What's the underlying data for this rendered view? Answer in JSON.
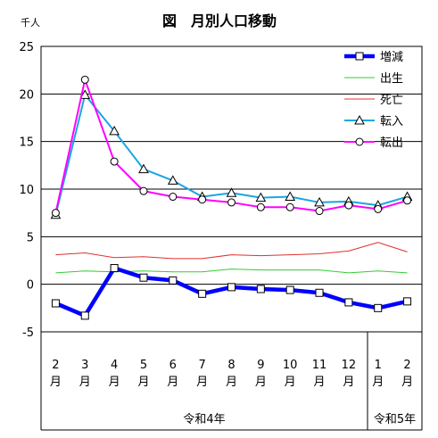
{
  "chart_data": {
    "type": "line",
    "title": "図　月別人口移動",
    "ylabel": "千人",
    "ylim": [
      -5,
      25
    ],
    "yticks": [
      -5,
      0,
      5,
      10,
      15,
      20,
      25
    ],
    "grid": true,
    "legend_position": "top-right",
    "categories": [
      {
        "month": "2",
        "unit": "月"
      },
      {
        "month": "3",
        "unit": "月"
      },
      {
        "month": "4",
        "unit": "月"
      },
      {
        "month": "5",
        "unit": "月"
      },
      {
        "month": "6",
        "unit": "月"
      },
      {
        "month": "7",
        "unit": "月"
      },
      {
        "month": "8",
        "unit": "月"
      },
      {
        "month": "9",
        "unit": "月"
      },
      {
        "month": "10",
        "unit": "月"
      },
      {
        "month": "11",
        "unit": "月"
      },
      {
        "month": "12",
        "unit": "月"
      },
      {
        "month": "1",
        "unit": "月"
      },
      {
        "month": "2",
        "unit": "月"
      }
    ],
    "eras": [
      {
        "label": "令和4年",
        "start": 0,
        "end": 10
      },
      {
        "label": "令和5年",
        "start": 11,
        "end": 12
      }
    ],
    "series": [
      {
        "name": "増減",
        "color": "#0000ff",
        "marker": "square",
        "values": [
          -2.0,
          -3.3,
          1.7,
          0.7,
          0.4,
          -1.0,
          -0.3,
          -0.5,
          -0.6,
          -0.9,
          -1.9,
          -2.5,
          -1.8
        ]
      },
      {
        "name": "出生",
        "color": "#33cc33",
        "marker": "none",
        "values": [
          1.2,
          1.4,
          1.3,
          1.4,
          1.3,
          1.3,
          1.6,
          1.5,
          1.5,
          1.5,
          1.2,
          1.4,
          1.2
        ]
      },
      {
        "name": "死亡",
        "color": "#e03030",
        "marker": "none",
        "values": [
          3.1,
          3.3,
          2.8,
          2.9,
          2.7,
          2.7,
          3.1,
          3.0,
          3.1,
          3.2,
          3.5,
          4.4,
          3.4
        ]
      },
      {
        "name": "転入",
        "color": "#1aa6e0",
        "marker": "triangle",
        "values": [
          7.3,
          19.9,
          16.1,
          12.1,
          10.9,
          9.2,
          9.6,
          9.1,
          9.2,
          8.6,
          8.7,
          8.3,
          9.2
        ]
      },
      {
        "name": "転出",
        "color": "#ff00ff",
        "marker": "circle",
        "values": [
          7.5,
          21.5,
          12.9,
          9.8,
          9.2,
          8.9,
          8.6,
          8.1,
          8.1,
          7.7,
          8.3,
          7.9,
          8.8
        ]
      }
    ]
  }
}
